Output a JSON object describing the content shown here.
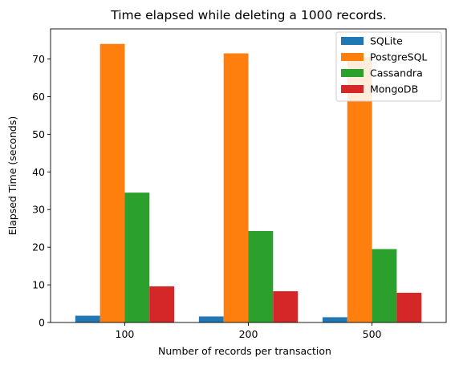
{
  "chart_data": {
    "type": "bar",
    "title": "Time elapsed while deleting a 1000 records.",
    "xlabel": "Number of records per transaction",
    "ylabel": "Elapsed Time (seconds)",
    "categories": [
      "100",
      "200",
      "500"
    ],
    "series": [
      {
        "name": "SQLite",
        "color": "#1f77b4",
        "values": [
          1.8,
          1.6,
          1.4
        ]
      },
      {
        "name": "PostgreSQL",
        "color": "#ff7f0e",
        "values": [
          74.0,
          71.5,
          70.5
        ]
      },
      {
        "name": "Cassandra",
        "color": "#2ca02c",
        "values": [
          34.5,
          24.3,
          19.5
        ]
      },
      {
        "name": "MongoDB",
        "color": "#d62728",
        "values": [
          9.6,
          8.3,
          7.9
        ]
      }
    ],
    "ylim": [
      0,
      78
    ],
    "yticks": [
      0,
      10,
      20,
      30,
      40,
      50,
      60,
      70
    ],
    "legend_position": "top-right",
    "grid": false
  }
}
